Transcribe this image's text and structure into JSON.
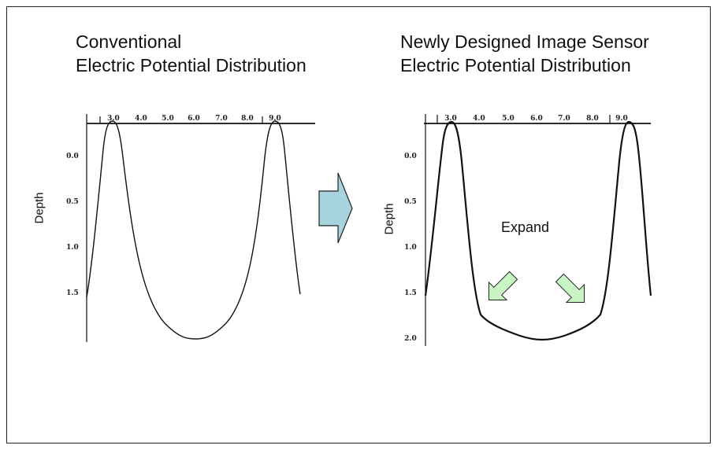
{
  "left_panel": {
    "title_line1": "Conventional",
    "title_line2": "Electric Potential Distribution",
    "y_label": "Depth",
    "x_ticks": [
      "3.0",
      "4.0",
      "5.0",
      "6.0",
      "7.0",
      "8.0",
      "9.0"
    ],
    "y_ticks": [
      "0.0",
      "0.5",
      "1.0",
      "1.5"
    ]
  },
  "right_panel": {
    "title_line1": "Newly Designed Image Sensor",
    "title_line2": "Electric Potential Distribution",
    "y_label": "Depth",
    "x_ticks": [
      "3.0",
      "4.0",
      "5.0",
      "6.0",
      "7.0",
      "8.0",
      "9.0"
    ],
    "y_ticks": [
      "0.0",
      "0.5",
      "1.0",
      "1.5",
      "2.0"
    ],
    "annotation": "Expand"
  },
  "colors": {
    "arrow_blue": "#a6d3dc",
    "arrow_green": "#c9f5c4",
    "line": "#111111"
  }
}
